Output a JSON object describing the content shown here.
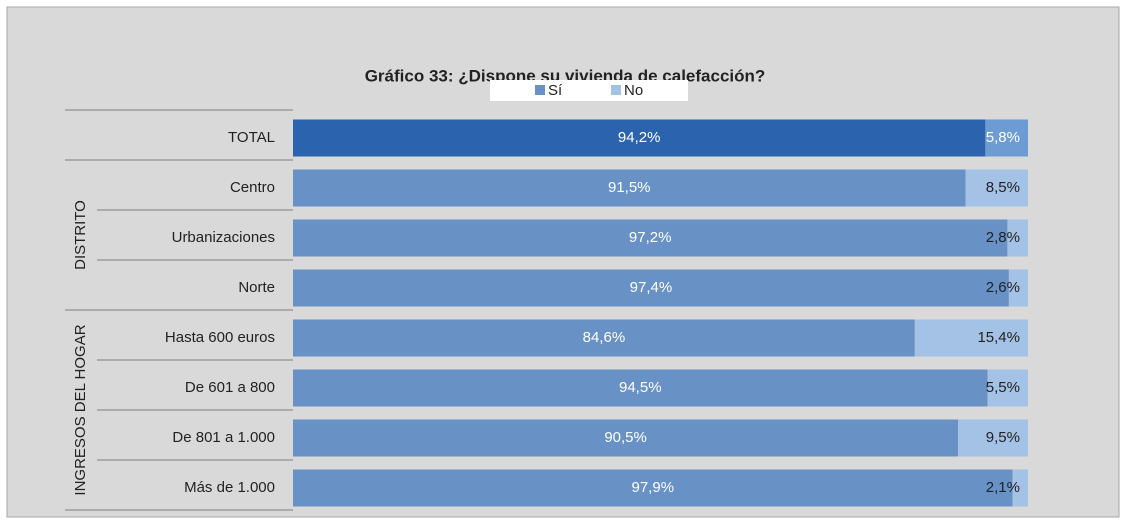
{
  "chart_data": {
    "type": "stacked_barh",
    "title": "Gráfico 33: ¿Dispone su vivienda de calefacción?",
    "categories": [
      "TOTAL",
      "Centro",
      "Urbanizaciones",
      "Norte",
      "Hasta 600 euros",
      "De 601 a 800",
      "De 801 a 1.000",
      "Más de 1.000"
    ],
    "groups": [
      {
        "name": "DISTRITO",
        "categories": [
          1,
          2,
          3
        ]
      },
      {
        "name": "INGRESOS DEL HOGAR",
        "categories": [
          4,
          5,
          6,
          7
        ]
      }
    ],
    "xlim": [
      0,
      100
    ],
    "legend": "top",
    "series": [
      {
        "name": "Sí",
        "color": "#6891c6",
        "colors": [
          "#2b63ae",
          "#6891c6",
          "#6891c6",
          "#6891c6",
          "#6891c6",
          "#6891c6",
          "#6891c6",
          "#6891c6"
        ],
        "values": [
          94.2,
          91.5,
          97.2,
          97.4,
          84.6,
          94.5,
          90.5,
          97.9
        ],
        "value_labels": [
          "94,2%",
          "91,5%",
          "97,2%",
          "97,4%",
          "84,6%",
          "94,5%",
          "90,5%",
          "97,9%"
        ]
      },
      {
        "name": "No",
        "color": "#a4c2e6",
        "colors": [
          "#6d9bd3",
          "#a4c2e6",
          "#a4c2e6",
          "#a4c2e6",
          "#a4c2e6",
          "#a4c2e6",
          "#a4c2e6",
          "#a4c2e6"
        ],
        "values": [
          5.8,
          8.5,
          2.8,
          2.6,
          15.4,
          5.5,
          9.5,
          2.1
        ],
        "value_labels": [
          "5,8%",
          "8,5%",
          "2,8%",
          "2,6%",
          "15,4%",
          "5,5%",
          "9,5%",
          "2,1%"
        ]
      }
    ]
  }
}
